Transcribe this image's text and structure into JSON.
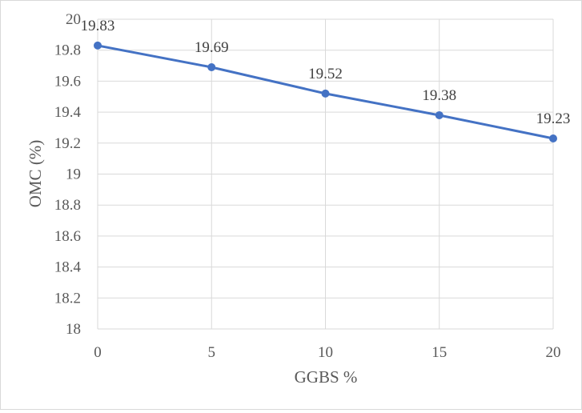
{
  "chart_data": {
    "type": "line",
    "title": "",
    "xlabel": "GGBS %",
    "ylabel": "OMC (%)",
    "x": [
      0,
      5,
      10,
      15,
      20
    ],
    "xlim": [
      0,
      20
    ],
    "ylim": [
      18,
      20
    ],
    "yticks": [
      18,
      18.2,
      18.4,
      18.6,
      18.8,
      19,
      19.2,
      19.4,
      19.6,
      19.8,
      20
    ],
    "ytick_labels": [
      "18",
      "18.2",
      "18.4",
      "18.6",
      "18.8",
      "19",
      "19.2",
      "19.4",
      "19.6",
      "19.8",
      "20"
    ],
    "xticks": [
      0,
      5,
      10,
      15,
      20
    ],
    "xtick_labels": [
      "0",
      "5",
      "10",
      "15",
      "20"
    ],
    "grid": true,
    "series": [
      {
        "values": [
          19.83,
          19.69,
          19.52,
          19.38,
          19.23
        ],
        "data_labels": [
          "19.83",
          "19.69",
          "19.52",
          "19.38",
          "19.23"
        ],
        "color": "#4472c4"
      }
    ],
    "colors": {
      "line": "#4472c4",
      "grid": "#d9d9d9",
      "text": "#595959"
    }
  }
}
